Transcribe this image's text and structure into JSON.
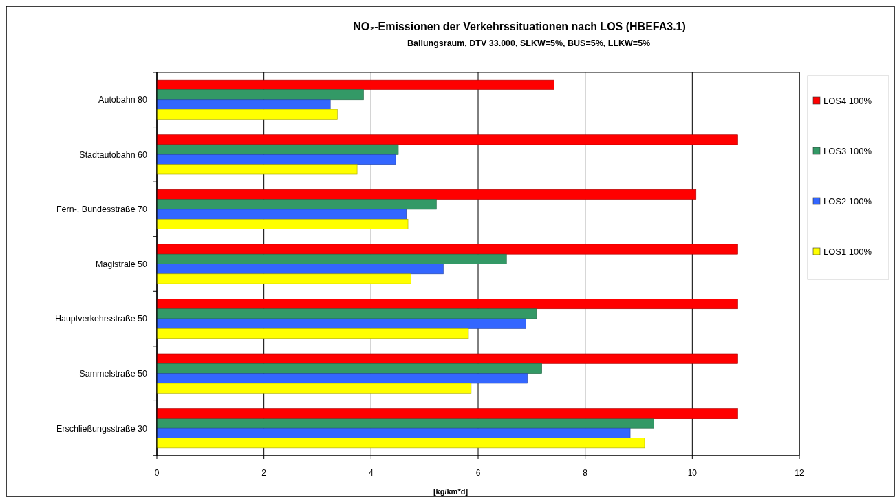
{
  "chart_data": {
    "type": "bar",
    "orientation": "horizontal",
    "title": "NO₂-Emissionen der Verkehrssituationen nach LOS (HBEFA3.1)",
    "subtitle": "Ballungsraum, DTV 33.000, SLKW=5%, BUS=5%, LLKW=5%",
    "xlabel": "[kg/km*d]",
    "categories": [
      "Autobahn 80",
      "Stadtautobahn 60",
      "Fern-, Bundesstraße 70",
      "Magistrale 50",
      "Hauptverkehrsstraße 50",
      "Sammelstraße 50",
      "Erschließungsstraße 30"
    ],
    "series": [
      {
        "name": "LOS4 100%",
        "color": "#ff0000",
        "values": [
          7.42,
          10.85,
          10.07,
          10.85,
          10.85,
          10.85,
          10.85
        ]
      },
      {
        "name": "LOS3 100%",
        "color": "#339966",
        "values": [
          3.86,
          4.51,
          5.22,
          6.53,
          7.09,
          7.19,
          9.28
        ]
      },
      {
        "name": "LOS2 100%",
        "color": "#3366ff",
        "values": [
          3.24,
          4.46,
          4.66,
          5.35,
          6.89,
          6.92,
          8.84
        ]
      },
      {
        "name": "LOS1 100%",
        "color": "#ffff00",
        "values": [
          3.37,
          3.74,
          4.69,
          4.75,
          5.82,
          5.87,
          9.11
        ]
      }
    ],
    "xlim": [
      0,
      12
    ],
    "xticks": [
      0,
      2,
      4,
      6,
      8,
      10,
      12
    ],
    "grid": "x",
    "legend": "right"
  }
}
